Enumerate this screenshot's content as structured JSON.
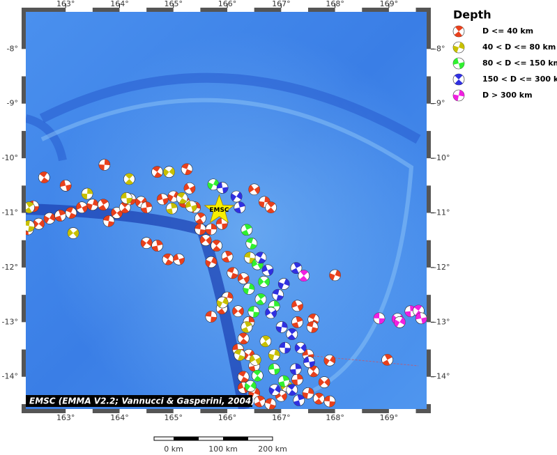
{
  "map": {
    "lon_range": [
      162.26,
      169.7
    ],
    "lat_range": [
      -7.32,
      -14.59
    ],
    "lon_ticks": [
      {
        "value": 163,
        "label": "163°"
      },
      {
        "value": 164,
        "label": "164°"
      },
      {
        "value": 165,
        "label": "165°"
      },
      {
        "value": 166,
        "label": "166°"
      },
      {
        "value": 167,
        "label": "167°"
      },
      {
        "value": 168,
        "label": "168°"
      },
      {
        "value": 169,
        "label": "169°"
      }
    ],
    "lat_ticks": [
      {
        "value": -8,
        "label": "-8°"
      },
      {
        "value": -9,
        "label": "-9°"
      },
      {
        "value": -10,
        "label": "-10°"
      },
      {
        "value": -11,
        "label": "-11°"
      },
      {
        "value": -12,
        "label": "-12°"
      },
      {
        "value": -13,
        "label": "-13°"
      },
      {
        "value": -14,
        "label": "-14°"
      }
    ]
  },
  "epicenter": {
    "label": "EMSC",
    "lon": 165.85,
    "lat": -10.95
  },
  "credit": "EMSC (EMMA V2.2; Vannucci & Gasperini, 2004)",
  "scale_bar": {
    "labels": [
      "0 km",
      "100 km",
      "200 km"
    ]
  },
  "legend": {
    "title": "Depth",
    "items": [
      {
        "label": "D <= 40 km",
        "color": "#e8401c",
        "events": [
          [
            162.4,
            -10.88
          ],
          [
            162.5,
            -11.2
          ],
          [
            162.3,
            -11.3
          ],
          [
            162.6,
            -10.35
          ],
          [
            163.0,
            -10.5
          ],
          [
            162.7,
            -11.1
          ],
          [
            162.9,
            -11.05
          ],
          [
            163.1,
            -11.0
          ],
          [
            163.3,
            -10.9
          ],
          [
            163.5,
            -10.85
          ],
          [
            163.7,
            -10.85
          ],
          [
            163.8,
            -11.15
          ],
          [
            163.95,
            -11.0
          ],
          [
            163.72,
            -10.12
          ],
          [
            164.1,
            -10.9
          ],
          [
            164.2,
            -10.75
          ],
          [
            164.4,
            -10.8
          ],
          [
            164.5,
            -10.9
          ],
          [
            164.7,
            -10.25
          ],
          [
            164.8,
            -10.75
          ],
          [
            165.0,
            -10.7
          ],
          [
            165.2,
            -10.8
          ],
          [
            165.25,
            -10.2
          ],
          [
            165.3,
            -10.55
          ],
          [
            165.4,
            -10.9
          ],
          [
            165.5,
            -11.1
          ],
          [
            165.5,
            -11.3
          ],
          [
            165.6,
            -11.5
          ],
          [
            165.7,
            -11.3
          ],
          [
            165.8,
            -11.6
          ],
          [
            165.9,
            -11.2
          ],
          [
            164.5,
            -11.55
          ],
          [
            164.7,
            -11.6
          ],
          [
            164.9,
            -11.85
          ],
          [
            165.1,
            -11.85
          ],
          [
            165.7,
            -11.9
          ],
          [
            166.0,
            -11.8
          ],
          [
            166.1,
            -12.1
          ],
          [
            166.3,
            -12.2
          ],
          [
            166.0,
            -12.55
          ],
          [
            165.9,
            -12.75
          ],
          [
            165.7,
            -12.9
          ],
          [
            166.2,
            -12.8
          ],
          [
            166.4,
            -13.0
          ],
          [
            166.3,
            -13.3
          ],
          [
            166.2,
            -13.5
          ],
          [
            166.4,
            -13.6
          ],
          [
            166.5,
            -13.8
          ],
          [
            166.3,
            -14.0
          ],
          [
            166.3,
            -14.2
          ],
          [
            166.5,
            -14.3
          ],
          [
            166.6,
            -14.45
          ],
          [
            166.8,
            -14.5
          ],
          [
            167.0,
            -14.35
          ],
          [
            167.5,
            -14.3
          ],
          [
            167.7,
            -14.4
          ],
          [
            167.9,
            -14.45
          ],
          [
            167.8,
            -14.1
          ],
          [
            167.3,
            -14.05
          ],
          [
            167.6,
            -13.9
          ],
          [
            167.5,
            -13.6
          ],
          [
            167.9,
            -13.7
          ],
          [
            167.3,
            -13.0
          ],
          [
            167.6,
            -12.95
          ],
          [
            167.3,
            -12.7
          ],
          [
            168.0,
            -12.14
          ],
          [
            168.97,
            -13.69
          ],
          [
            167.58,
            -13.09
          ],
          [
            166.5,
            -10.57
          ],
          [
            166.69,
            -10.8
          ],
          [
            166.81,
            -10.9
          ]
        ]
      },
      {
        "label": "40 < D <= 80 km",
        "color": "#c8c000",
        "events": [
          [
            162.32,
            -10.9
          ],
          [
            162.32,
            -11.24
          ],
          [
            163.14,
            -11.37
          ],
          [
            163.4,
            -10.65
          ],
          [
            164.18,
            -10.38
          ],
          [
            164.13,
            -10.73
          ],
          [
            164.92,
            -10.25
          ],
          [
            164.97,
            -10.92
          ],
          [
            165.16,
            -10.73
          ],
          [
            165.33,
            -10.88
          ],
          [
            165.91,
            -12.64
          ],
          [
            166.36,
            -13.09
          ],
          [
            166.23,
            -13.6
          ],
          [
            166.52,
            -13.69
          ],
          [
            166.87,
            -13.6
          ],
          [
            166.71,
            -13.35
          ],
          [
            166.42,
            -11.82
          ],
          [
            167.1,
            -14.17
          ]
        ]
      },
      {
        "label": "80 < D <= 150 km",
        "color": "#30f030",
        "events": [
          [
            165.74,
            -10.48
          ],
          [
            166.36,
            -11.31
          ],
          [
            166.45,
            -11.56
          ],
          [
            166.56,
            -11.94
          ],
          [
            166.4,
            -12.39
          ],
          [
            166.62,
            -12.58
          ],
          [
            166.49,
            -12.81
          ],
          [
            166.68,
            -12.26
          ],
          [
            166.87,
            -12.71
          ],
          [
            166.56,
            -13.98
          ],
          [
            166.87,
            -13.86
          ],
          [
            166.43,
            -14.17
          ],
          [
            167.05,
            -14.08
          ]
        ]
      },
      {
        "label": "150 < D <= 300 km",
        "color": "#3030e0",
        "events": [
          [
            165.91,
            -10.54
          ],
          [
            166.17,
            -10.7
          ],
          [
            166.23,
            -10.9
          ],
          [
            166.62,
            -11.82
          ],
          [
            166.75,
            -12.05
          ],
          [
            167.05,
            -12.3
          ],
          [
            167.28,
            -12.01
          ],
          [
            166.94,
            -12.5
          ],
          [
            166.81,
            -12.83
          ],
          [
            167.01,
            -13.09
          ],
          [
            167.2,
            -13.22
          ],
          [
            167.07,
            -13.47
          ],
          [
            167.36,
            -13.47
          ],
          [
            167.27,
            -13.86
          ],
          [
            167.2,
            -14.24
          ],
          [
            167.52,
            -13.73
          ],
          [
            166.88,
            -14.24
          ],
          [
            167.33,
            -14.43
          ]
        ]
      },
      {
        "label": "D > 300 km",
        "color": "#f020e0",
        "events": [
          [
            167.42,
            -12.15
          ],
          [
            168.82,
            -12.93
          ],
          [
            169.16,
            -12.94
          ],
          [
            169.4,
            -12.8
          ],
          [
            169.55,
            -12.79
          ],
          [
            169.6,
            -12.93
          ],
          [
            169.2,
            -13.0
          ]
        ]
      }
    ]
  }
}
